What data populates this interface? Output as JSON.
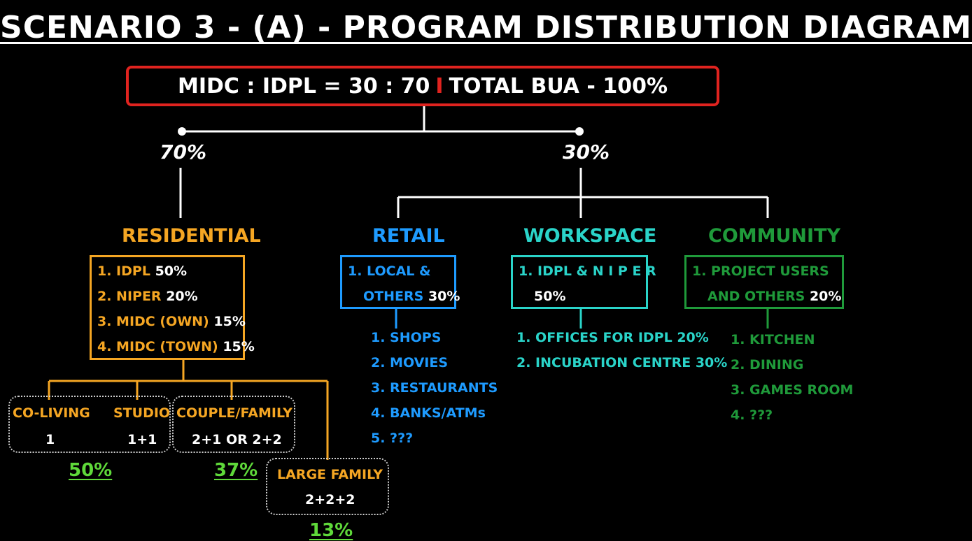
{
  "title": "SCENARIO 3 - (A) - PROGRAM DISTRIBUTION DIAGRAM",
  "ratio": {
    "left": "MIDC : IDPL = 30 : 70",
    "separator": "I",
    "right": "TOTAL BUA  - 100%"
  },
  "split": {
    "left_pct": "70%",
    "right_pct": "30%"
  },
  "colors": {
    "residential": "#f5a623",
    "retail": "#1e9bff",
    "workspace": "#2ad4c9",
    "community": "#1f9a3a",
    "ratio_border": "#e0231f",
    "share": "#5fd93a"
  },
  "residential": {
    "label": "RESIDENTIAL",
    "items": [
      {
        "name": "1. IDPL",
        "value": "50%"
      },
      {
        "name": "2. NIPER",
        "value": "20%"
      },
      {
        "name": "3. MIDC (OWN)",
        "value": "15%"
      },
      {
        "name": "4. MIDC (TOWN)",
        "value": "15%"
      }
    ],
    "units": {
      "coliving_label": "CO-LIVING",
      "coliving_value": "1",
      "studio_label": "STUDIO",
      "studio_value": "1+1",
      "couple_label": "COUPLE/FAMILY",
      "couple_value": "2+1 OR 2+2",
      "large_label": "LARGE FAMILY",
      "large_value": "2+2+2"
    },
    "shares": {
      "small": "50%",
      "couple": "37%",
      "large": "13%"
    }
  },
  "retail": {
    "label": "RETAIL",
    "box_line1": "1. LOCAL &",
    "box_line2_name": "OTHERS",
    "box_line2_value": "30%",
    "items": [
      "1. SHOPS",
      "2. MOVIES",
      "3. RESTAURANTS",
      "4. BANKS/ATMs",
      "5. ???"
    ]
  },
  "workspace": {
    "label": "WORKSPACE",
    "box_line1": "1. IDPL & N I P E R",
    "box_line2_value": "50%",
    "items": [
      "1. OFFICES FOR IDPL 20%",
      "2. INCUBATION CENTRE 30%"
    ]
  },
  "community": {
    "label": "COMMUNITY",
    "box_line1": "1. PROJECT USERS",
    "box_line2_name": "AND OTHERS",
    "box_line2_value": "20%",
    "items": [
      "1. KITCHEN",
      "2. DINING",
      "3. GAMES ROOM",
      "4. ???"
    ]
  }
}
